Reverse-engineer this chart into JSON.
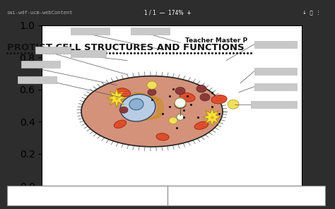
{
  "bg_toolbar": "#2d2d2d",
  "bg_page": "#ffffff",
  "bg_bottom": "#f0f0f0",
  "toolbar_text": "sai-wdf-ucm-webContent",
  "toolbar_center": "1 / 1  —  174%  +",
  "title_right": "Teacher Master P",
  "title_main": "PROTIST CELL STRUCTURES AND FUNCTIONS",
  "title_fontsize": 9.5,
  "subtitle_fontsize": 7,
  "cell_fill": "#d4927a",
  "cell_stroke": "#222222",
  "nucleus_fill": "#a0b8d8",
  "nucleus_stroke": "#333333",
  "nucleolus_fill": "#c8d8e8",
  "er_fill": "#e8c040",
  "er_stroke": "#b08820",
  "mito_fill": "#e06030",
  "mito_stroke": "#cc4422",
  "vacuole_fill": "#f8f0d0",
  "vacuole_stroke": "#ccaa44",
  "chloro_fill": "#f0d020",
  "chloro_stroke": "#cc9900",
  "dark_granule": "#8b3a3a",
  "yellow_granule": "#f0d060",
  "dot_color": "#111111",
  "label_box_fill": "#c8c8c8",
  "label_box_stroke": "#999999",
  "bottom_box_fill": "#ffffff",
  "bottom_box_stroke": "#888888",
  "cilia_color": "#333333"
}
